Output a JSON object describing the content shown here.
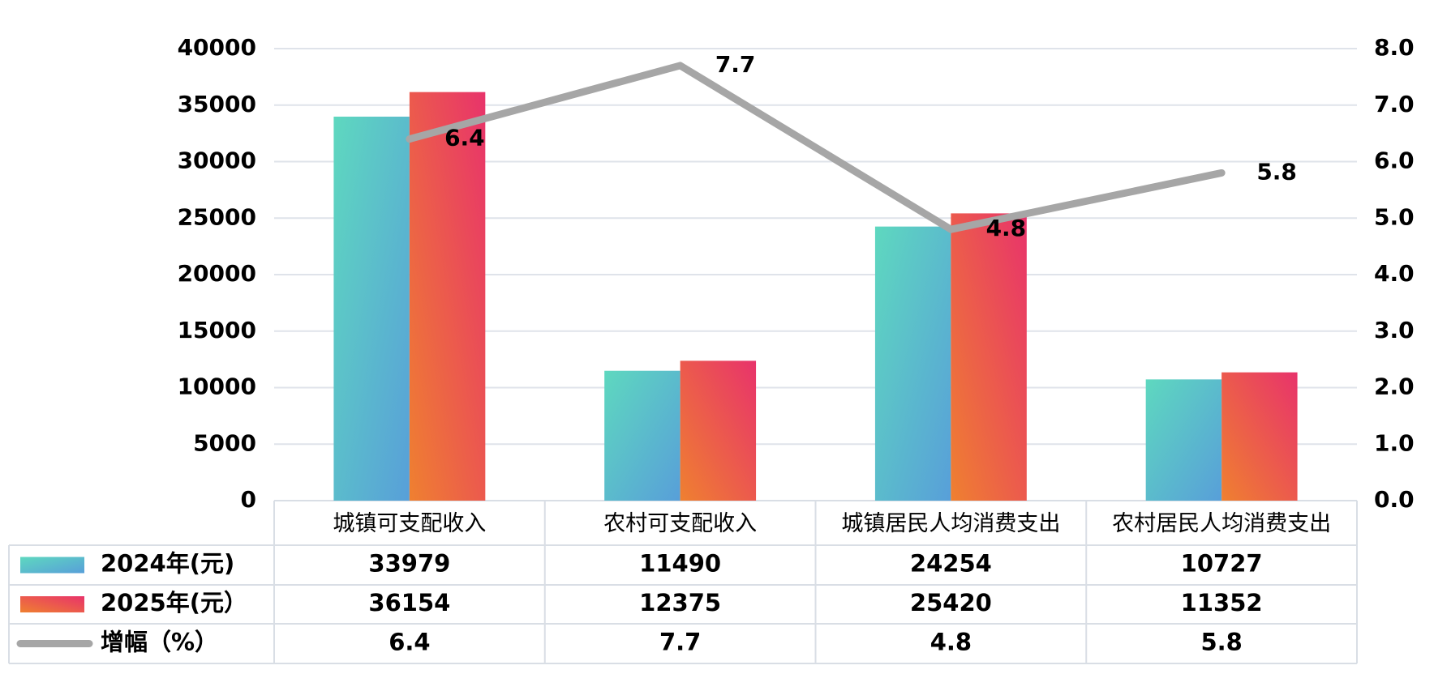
{
  "chart_data": {
    "type": "bar-line-table",
    "categories": [
      "城镇可支配收入",
      "农村可支配收入",
      "城镇居民人均消费支出",
      "农村居民人均消费支出"
    ],
    "series": [
      {
        "name": "2024年(元)",
        "type": "bar",
        "colors": [
          "#5ed8bf",
          "#589fd9"
        ],
        "values": [
          33979,
          11490,
          24254,
          10727
        ]
      },
      {
        "name": "2025年(元）",
        "type": "bar",
        "colors": [
          "#e8336b",
          "#ef8030"
        ],
        "values": [
          36154,
          12375,
          25420,
          11352
        ]
      },
      {
        "name": "增幅（%）",
        "type": "line",
        "axis": "y2",
        "color": "#a6a6a6",
        "values": [
          6.4,
          7.7,
          4.8,
          5.8
        ]
      }
    ],
    "ylim": [
      0,
      40000
    ],
    "yticks": [
      0,
      5000,
      10000,
      15000,
      20000,
      25000,
      30000,
      35000,
      40000
    ],
    "y2lim": [
      0,
      8
    ],
    "y2ticks": [
      {
        "value": 0,
        "label": "0.0"
      },
      {
        "value": 1,
        "label": "1.0"
      },
      {
        "value": 2,
        "label": "2.0"
      },
      {
        "value": 3,
        "label": "3.0"
      },
      {
        "value": 4,
        "label": "4.0"
      },
      {
        "value": 5,
        "label": "5.0"
      },
      {
        "value": 6,
        "label": "6.0"
      },
      {
        "value": 7,
        "label": "7.0"
      },
      {
        "value": 8,
        "label": "8.0"
      }
    ],
    "grid": true,
    "data_table": true
  }
}
